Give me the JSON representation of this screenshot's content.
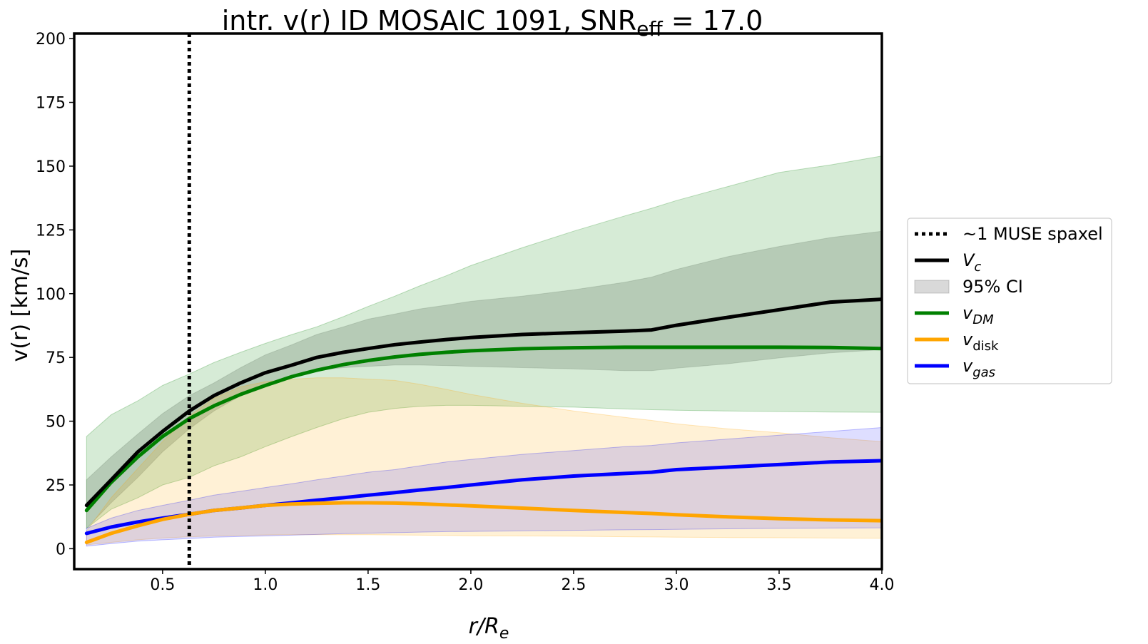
{
  "chart_data": {
    "type": "line",
    "title": {
      "prefix": "intr. v(r) ID MOSAIC 1091, SNR",
      "sub": "eff",
      "suffix": " = 17.0"
    },
    "xlabel": {
      "main": "r/R",
      "sub": "e"
    },
    "ylabel": "v(r) [km/s]",
    "xlim": [
      0.07,
      4.0
    ],
    "ylim": [
      -8,
      202
    ],
    "xticks": [
      0.5,
      1.0,
      1.5,
      2.0,
      2.5,
      3.0,
      3.5,
      4.0
    ],
    "xtick_labels": [
      "0.5",
      "1.0",
      "1.5",
      "2.0",
      "2.5",
      "3.0",
      "3.5",
      "4.0"
    ],
    "yticks": [
      0,
      25,
      50,
      75,
      100,
      125,
      150,
      175,
      200
    ],
    "ytick_labels": [
      "0",
      "25",
      "50",
      "75",
      "100",
      "125",
      "150",
      "175",
      "200"
    ],
    "grid": false,
    "legend_placement": "outside right",
    "vline": {
      "x": 0.63,
      "style": "dotted",
      "color": "#000000"
    },
    "x": [
      0.13,
      0.25,
      0.38,
      0.5,
      0.63,
      0.75,
      0.88,
      1.0,
      1.13,
      1.25,
      1.38,
      1.5,
      1.63,
      1.75,
      1.88,
      2.0,
      2.25,
      2.5,
      2.75,
      2.88,
      3.0,
      3.25,
      3.5,
      3.75,
      4.0
    ],
    "series": [
      {
        "key": "vc",
        "color": "#000000",
        "values": [
          17,
          27,
          38,
          46,
          54,
          60,
          65,
          69,
          72,
          75,
          77,
          78.5,
          80,
          81,
          82,
          82.8,
          84,
          84.7,
          85.3,
          85.8,
          87.6,
          90.7,
          93.7,
          96.7,
          97.8
        ],
        "band_upper": [
          27,
          36,
          45,
          53,
          60,
          65,
          71,
          76,
          80,
          84,
          87,
          90,
          92,
          94,
          95.5,
          97,
          99,
          101.5,
          104.5,
          106.5,
          109.5,
          114.5,
          118.5,
          122,
          124.5
        ],
        "band_lower": [
          8,
          18,
          28,
          38,
          47,
          54,
          60,
          64.5,
          68,
          70,
          71,
          71.5,
          72,
          72,
          71.8,
          71.5,
          71,
          70.5,
          69.8,
          69.8,
          70.8,
          72.5,
          74.8,
          76.8,
          78
        ],
        "band_color": "#808080",
        "band_opacity": 0.3
      },
      {
        "key": "vdm",
        "color": "#008000",
        "values": [
          15,
          26,
          36,
          44,
          51,
          56,
          60.5,
          64,
          67.5,
          70,
          72.2,
          73.8,
          75.2,
          76.2,
          77,
          77.6,
          78.4,
          78.8,
          79,
          79,
          79,
          79,
          79,
          78.9,
          78.5
        ],
        "band_upper": [
          44,
          52.5,
          58,
          64,
          68.5,
          73,
          77,
          80.5,
          84,
          87,
          91,
          95,
          99,
          103,
          107,
          111,
          118,
          124.5,
          130.5,
          133.5,
          136.5,
          142,
          147.5,
          150.5,
          154
        ],
        "band_lower": [
          8,
          15.5,
          20,
          25,
          28,
          32.5,
          36,
          40,
          44,
          47.5,
          51,
          53.5,
          55,
          55.8,
          56.2,
          56.2,
          55.8,
          55.5,
          54.8,
          54.5,
          54.3,
          54,
          53.8,
          53.6,
          53.5
        ],
        "band_color": "#008000",
        "band_opacity": 0.16
      },
      {
        "key": "vdisk",
        "color": "#ffa500",
        "values": [
          2.5,
          6,
          9,
          11.5,
          13.5,
          15,
          16,
          17,
          17.5,
          17.8,
          18,
          18,
          17.9,
          17.6,
          17.2,
          16.8,
          15.9,
          15,
          14.2,
          13.8,
          13.3,
          12.5,
          11.8,
          11.3,
          11
        ],
        "band_upper": [
          7,
          20,
          31.5,
          42,
          52,
          59,
          63.5,
          65.5,
          66.5,
          67,
          67,
          66.5,
          66,
          64.5,
          62.5,
          60.5,
          57,
          54,
          51.5,
          50.3,
          49,
          47,
          45.5,
          43.5,
          42
        ],
        "band_lower": [
          1.5,
          2.5,
          3.5,
          4.2,
          4.7,
          5,
          5.2,
          5.4,
          5.5,
          5.5,
          5.5,
          5.5,
          5.4,
          5.3,
          5.2,
          5.1,
          5,
          4.9,
          4.7,
          4.6,
          4.5,
          4.4,
          4.3,
          4.2,
          4.1
        ],
        "band_color": "#ffa500",
        "band_opacity": 0.16
      },
      {
        "key": "vgas",
        "color": "#0000ff",
        "values": [
          6,
          8.5,
          10.5,
          12,
          13.5,
          15,
          16,
          17,
          18,
          19,
          20,
          21,
          22,
          23,
          24,
          25,
          27,
          28.5,
          29.5,
          30,
          31,
          32,
          33,
          34,
          34.5
        ],
        "band_upper": [
          8,
          12,
          15,
          17,
          19,
          21,
          22.5,
          24,
          25.5,
          27,
          28.5,
          30,
          31,
          32.5,
          34,
          35,
          37,
          38.5,
          40,
          40.5,
          41.5,
          43,
          44.5,
          46,
          47.5
        ],
        "band_lower": [
          1,
          2,
          3,
          3.5,
          4,
          4.5,
          4.8,
          5,
          5.3,
          5.6,
          5.9,
          6.1,
          6.3,
          6.5,
          6.7,
          6.8,
          7,
          7.2,
          7.4,
          7.5,
          7.6,
          7.8,
          8,
          8.1,
          8.2
        ],
        "band_color": "#0000ff",
        "band_opacity": 0.13
      }
    ],
    "legend": [
      {
        "kind": "dotted",
        "color": "#000000",
        "label": "~1 MUSE spaxel"
      },
      {
        "kind": "line",
        "color": "#000000",
        "main": "V",
        "sub": "c",
        "italic_main": true,
        "italic_sub": true
      },
      {
        "kind": "patch",
        "color": "#808080",
        "label": "95% CI"
      },
      {
        "kind": "line",
        "color": "#008000",
        "main": "v",
        "sub": "DM",
        "italic_main": true,
        "italic_sub": true
      },
      {
        "kind": "line",
        "color": "#ffa500",
        "main": "v",
        "sub": "disk",
        "italic_main": true,
        "italic_sub": false
      },
      {
        "kind": "line",
        "color": "#0000ff",
        "main": "v",
        "sub": "gas",
        "italic_main": true,
        "italic_sub": true
      }
    ]
  }
}
